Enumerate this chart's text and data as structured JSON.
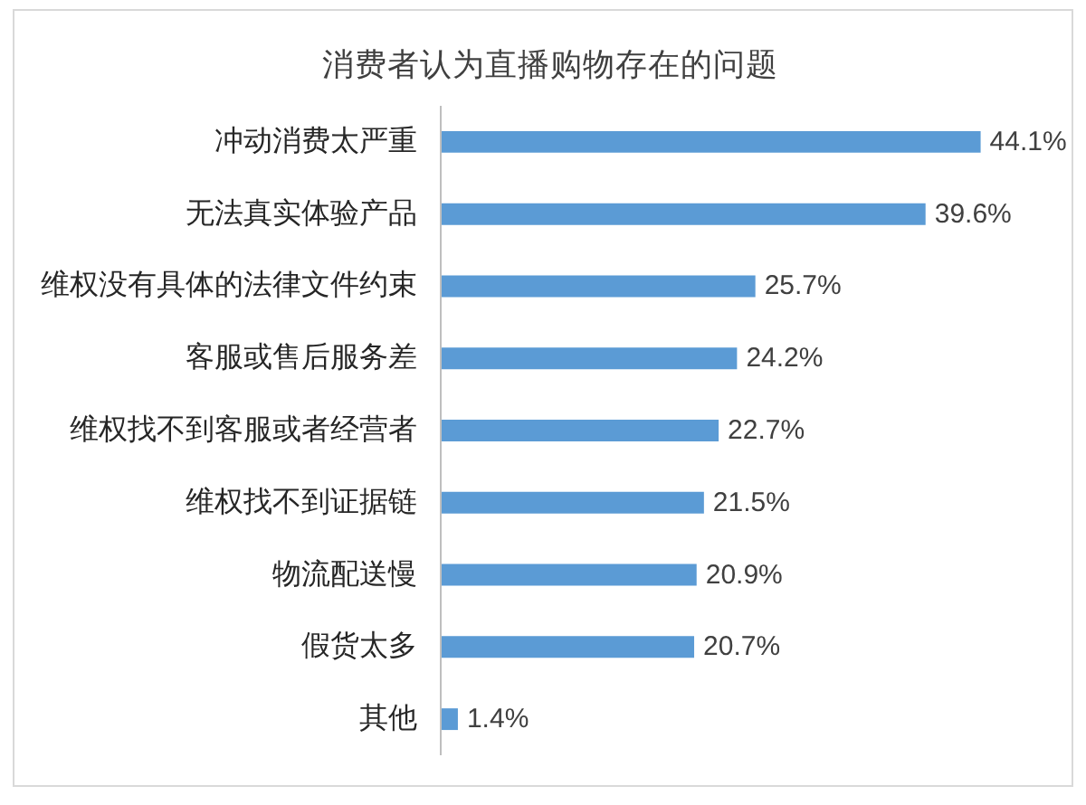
{
  "chart_data": {
    "type": "bar",
    "orientation": "horizontal",
    "title": "消费者认为直播购物存在的问题",
    "categories": [
      "冲动消费太严重",
      "无法真实体验产品",
      "维权没有具体的法律文件约束",
      "客服或售后服务差",
      "维权找不到客服或者经营者",
      "维权找不到证据链",
      "物流配送慢",
      "假货太多",
      "其他"
    ],
    "values": [
      44.1,
      39.6,
      25.7,
      24.2,
      22.7,
      21.5,
      20.9,
      20.7,
      1.4
    ],
    "value_labels": [
      "44.1%",
      "39.6%",
      "25.7%",
      "24.2%",
      "22.7%",
      "21.5%",
      "20.9%",
      "20.7%",
      "1.4%"
    ],
    "color": "#5b9bd5"
  }
}
